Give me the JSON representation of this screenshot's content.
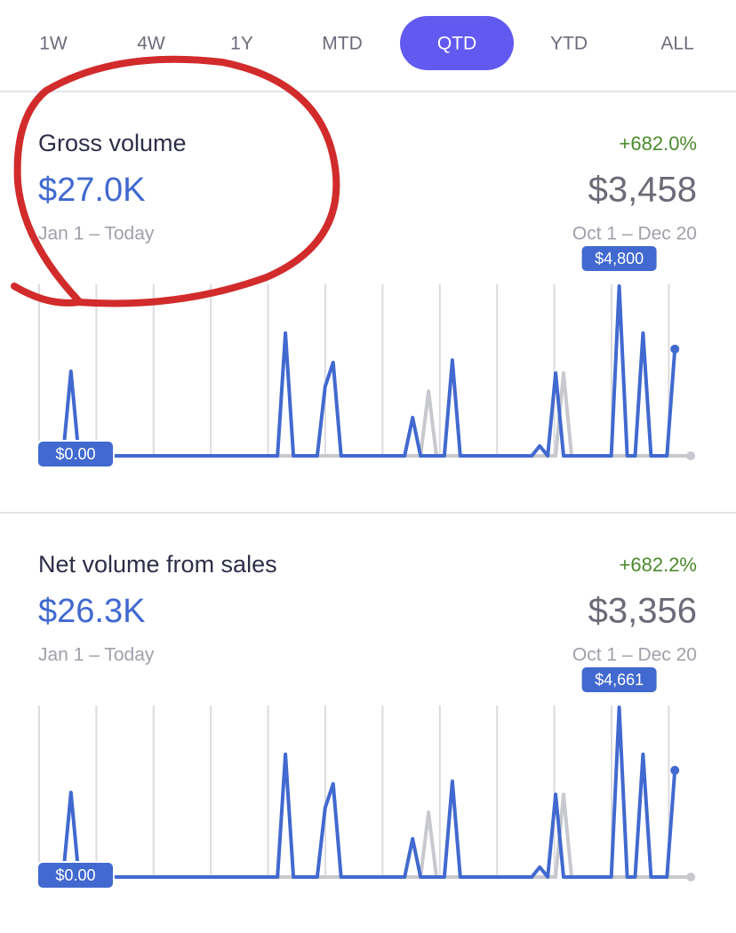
{
  "tabs": [
    "1W",
    "4W",
    "1Y",
    "MTD",
    "QTD",
    "YTD",
    "ALL"
  ],
  "selected_tab": 4,
  "cards": [
    {
      "title": "Gross volume",
      "value": "$27.0K",
      "period": "Jan 1 – Today",
      "change": "+682.0%",
      "compare_value": "$3,458",
      "compare_period": "Oct 1 – Dec 20",
      "chart": {
        "type": "line",
        "categories": [
          null,
          null,
          null,
          null,
          null,
          null,
          null,
          null,
          null,
          null,
          null,
          null,
          null,
          null,
          null,
          null,
          null,
          null,
          null,
          null,
          null,
          null,
          null,
          null,
          null,
          null,
          null,
          null,
          null,
          null,
          null,
          null,
          null,
          null,
          null,
          null,
          null,
          null,
          null,
          null,
          null,
          null,
          null,
          null,
          null,
          null,
          null,
          null,
          null,
          null,
          null,
          null,
          null,
          null,
          null,
          null,
          null,
          null,
          null,
          null,
          null,
          null,
          null,
          null,
          null,
          null,
          null,
          null,
          null,
          null,
          null,
          null,
          null,
          null,
          null,
          null,
          null,
          null,
          null,
          null,
          null,
          null,
          null
        ],
        "ylim": [
          0,
          4800
        ],
        "grid": true,
        "series": [
          {
            "color": "#c8c9ce",
            "values": [
              0,
              0,
              0,
              0,
              0,
              0,
              0,
              0,
              0,
              0,
              0,
              0,
              0,
              0,
              0,
              0,
              0,
              0,
              0,
              0,
              0,
              0,
              0,
              0,
              0,
              0,
              0,
              0,
              0,
              0,
              0,
              0,
              0,
              0,
              0,
              0,
              0,
              0,
              0,
              0,
              0,
              0,
              0,
              0,
              0,
              0,
              0,
              0,
              0,
              1830,
              0,
              0,
              0,
              0,
              0,
              0,
              0,
              0,
              0,
              0,
              0,
              0,
              0,
              0,
              0,
              0,
              2340,
              0,
              0,
              0,
              0,
              0,
              0,
              0,
              0,
              0,
              0,
              0,
              0,
              0,
              0,
              0,
              0
            ]
          },
          {
            "color": "#4169cf",
            "values": [
              0,
              0,
              0,
              0,
              2390,
              0,
              0,
              0,
              0,
              0,
              0,
              0,
              0,
              0,
              0,
              0,
              0,
              0,
              0,
              0,
              0,
              0,
              0,
              0,
              0,
              0,
              0,
              0,
              0,
              0,
              0,
              3470,
              0,
              0,
              0,
              0,
              1960,
              2640,
              0,
              0,
              0,
              0,
              0,
              0,
              0,
              0,
              0,
              1080,
              0,
              0,
              0,
              0,
              2710,
              0,
              0,
              0,
              0,
              0,
              0,
              0,
              0,
              0,
              0,
              280,
              0,
              2340,
              0,
              0,
              0,
              0,
              0,
              0,
              0,
              4800,
              0,
              0,
              3470,
              0,
              0,
              0,
              3020
            ],
            "value_labels": [
              "$0.00",
              null,
              null,
              null,
              null,
              null,
              null,
              null,
              null,
              null,
              null,
              null,
              null,
              null,
              null,
              null,
              null,
              null,
              null,
              null,
              null,
              null,
              null,
              null,
              null,
              null,
              null,
              null,
              null,
              null,
              null,
              null,
              null,
              null,
              null,
              null,
              null,
              null,
              null,
              null,
              null,
              null,
              null,
              null,
              null,
              null,
              null,
              null,
              null,
              null,
              null,
              null,
              null,
              null,
              null,
              null,
              null,
              null,
              null,
              null,
              null,
              null,
              null,
              null,
              null,
              null,
              null,
              null,
              null,
              null,
              null,
              null,
              null,
              "$4,800",
              null,
              null,
              null,
              null,
              null,
              null,
              null
            ]
          }
        ]
      }
    },
    {
      "title": "Net volume from sales",
      "value": "$26.3K",
      "period": "Jan 1 – Today",
      "change": "+682.2%",
      "compare_value": "$3,356",
      "compare_period": "Oct 1 – Dec 20",
      "chart": {
        "type": "line",
        "categories": [
          null,
          null,
          null,
          null,
          null,
          null,
          null,
          null,
          null,
          null,
          null,
          null,
          null,
          null,
          null,
          null,
          null,
          null,
          null,
          null,
          null,
          null,
          null,
          null,
          null,
          null,
          null,
          null,
          null,
          null,
          null,
          null,
          null,
          null,
          null,
          null,
          null,
          null,
          null,
          null,
          null,
          null,
          null,
          null,
          null,
          null,
          null,
          null,
          null,
          null,
          null,
          null,
          null,
          null,
          null,
          null,
          null,
          null,
          null,
          null,
          null,
          null,
          null,
          null,
          null,
          null,
          null,
          null,
          null,
          null,
          null,
          null,
          null,
          null,
          null,
          null,
          null,
          null,
          null,
          null,
          null,
          null,
          null
        ],
        "ylim": [
          0,
          4661
        ],
        "grid": true,
        "series": [
          {
            "color": "#c8c9ce",
            "values": [
              0,
              0,
              0,
              0,
              0,
              0,
              0,
              0,
              0,
              0,
              0,
              0,
              0,
              0,
              0,
              0,
              0,
              0,
              0,
              0,
              0,
              0,
              0,
              0,
              0,
              0,
              0,
              0,
              0,
              0,
              0,
              0,
              0,
              0,
              0,
              0,
              0,
              0,
              0,
              0,
              0,
              0,
              0,
              0,
              0,
              0,
              0,
              0,
              0,
              1780,
              0,
              0,
              0,
              0,
              0,
              0,
              0,
              0,
              0,
              0,
              0,
              0,
              0,
              0,
              0,
              0,
              2270,
              0,
              0,
              0,
              0,
              0,
              0,
              0,
              0,
              0,
              0,
              0,
              0,
              0,
              0,
              0,
              0
            ]
          },
          {
            "color": "#4169cf",
            "values": [
              0,
              0,
              0,
              0,
              2320,
              0,
              0,
              0,
              0,
              0,
              0,
              0,
              0,
              0,
              0,
              0,
              0,
              0,
              0,
              0,
              0,
              0,
              0,
              0,
              0,
              0,
              0,
              0,
              0,
              0,
              0,
              3370,
              0,
              0,
              0,
              0,
              1900,
              2560,
              0,
              0,
              0,
              0,
              0,
              0,
              0,
              0,
              0,
              1050,
              0,
              0,
              0,
              0,
              2630,
              0,
              0,
              0,
              0,
              0,
              0,
              0,
              0,
              0,
              0,
              270,
              0,
              2270,
              0,
              0,
              0,
              0,
              0,
              0,
              0,
              4661,
              0,
              0,
              3370,
              0,
              0,
              0,
              2930
            ],
            "value_labels": [
              "$0.00",
              null,
              null,
              null,
              null,
              null,
              null,
              null,
              null,
              null,
              null,
              null,
              null,
              null,
              null,
              null,
              null,
              null,
              null,
              null,
              null,
              null,
              null,
              null,
              null,
              null,
              null,
              null,
              null,
              null,
              null,
              null,
              null,
              null,
              null,
              null,
              null,
              null,
              null,
              null,
              null,
              null,
              null,
              null,
              null,
              null,
              null,
              null,
              null,
              null,
              null,
              null,
              null,
              null,
              null,
              null,
              null,
              null,
              null,
              null,
              null,
              null,
              null,
              null,
              null,
              null,
              null,
              null,
              null,
              null,
              null,
              null,
              null,
              "$4,661",
              null,
              null,
              null,
              null,
              null,
              null,
              null
            ]
          }
        ]
      }
    }
  ]
}
